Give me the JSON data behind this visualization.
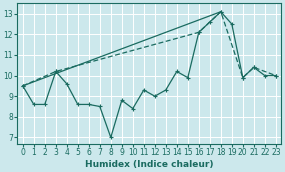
{
  "xlabel": "Humidex (Indice chaleur)",
  "xlim": [
    -0.5,
    23.5
  ],
  "ylim": [
    6.7,
    13.5
  ],
  "yticks": [
    7,
    8,
    9,
    10,
    11,
    12,
    13
  ],
  "xticks": [
    0,
    1,
    2,
    3,
    4,
    5,
    6,
    7,
    8,
    9,
    10,
    11,
    12,
    13,
    14,
    15,
    16,
    17,
    18,
    19,
    20,
    21,
    22,
    23
  ],
  "bg_color": "#cce8ec",
  "line_color": "#1a6b60",
  "grid_color": "#ffffff",
  "line1_x": [
    0,
    1,
    2,
    3,
    4,
    5,
    6,
    7,
    8,
    9,
    10,
    11,
    12,
    13,
    14,
    15,
    16,
    17,
    18,
    19,
    20,
    21,
    22,
    23
  ],
  "line1_y": [
    9.5,
    8.6,
    8.6,
    10.2,
    9.6,
    8.6,
    8.6,
    8.5,
    7.0,
    8.8,
    8.4,
    9.3,
    9.0,
    9.3,
    10.2,
    9.9,
    12.1,
    12.6,
    13.1,
    12.5,
    9.9,
    10.4,
    10.0,
    10.0
  ],
  "line2_x": [
    0,
    18
  ],
  "line2_y": [
    9.5,
    13.1
  ],
  "line3_x": [
    0,
    3,
    16,
    18,
    20,
    21,
    23
  ],
  "line3_y": [
    9.5,
    10.2,
    12.1,
    13.1,
    9.9,
    10.4,
    10.0
  ]
}
